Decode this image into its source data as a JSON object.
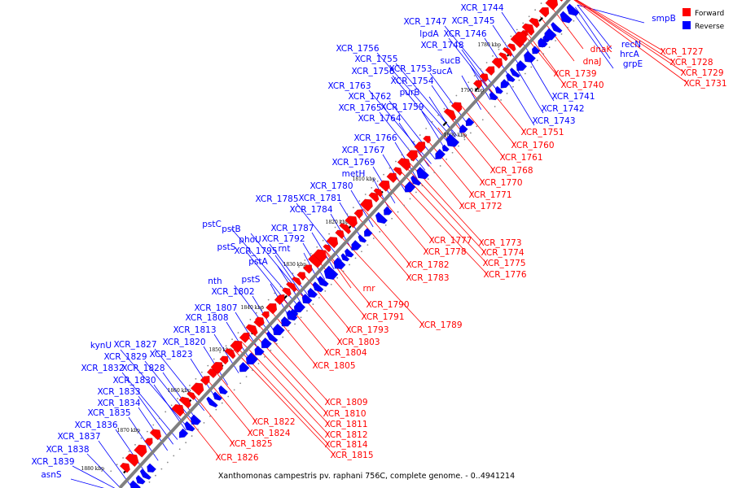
{
  "caption": "Xanthomonas campestris pv. raphani 756C, complete genome. - 0..4941214",
  "legend": {
    "forward_label": "Forward",
    "reverse_label": "Reverse",
    "forward_color": "#ff0000",
    "reverse_color": "#0000ff"
  },
  "colors": {
    "axis": "#808080",
    "tick": "#000000"
  },
  "ticks": [
    "1780 kbp",
    "1790 kbp",
    "1800 kbp",
    "1810 kbp",
    "1820 kbp",
    "1830 kbp",
    "1840 kbp",
    "1850 kbp",
    "1860 kbp",
    "1870 kbp",
    "1880 kbp"
  ],
  "reverse_genes": [
    "XCR_1744",
    "XCR_1745",
    "XCR_1747",
    "XCR_1746",
    "lpdA",
    "XCR_1748",
    "XCR_1756",
    "XCR_1755",
    "sucB",
    "XCR_1758",
    "XCR_1753",
    "sucA",
    "XCR_1754",
    "XCR_1763",
    "purB",
    "XCR_1762",
    "XCR_1765",
    "XCR_1759",
    "XCR_1764",
    "XCR_1766",
    "XCR_1767",
    "XCR_1769",
    "metH",
    "XCR_1780",
    "XCR_1785",
    "XCR_1781",
    "XCR_1784",
    "pstC",
    "pstB",
    "XCR_1787",
    "phoU",
    "XCR_1792",
    "pstS",
    "XCR_1795",
    "rnt",
    "pstA",
    "nth",
    "pstS",
    "XCR_1802",
    "XCR_1807",
    "XCR_1808",
    "XCR_1813",
    "XCR_1820",
    "kynU",
    "XCR_1827",
    "XCR_1823",
    "XCR_1829",
    "XCR_1832",
    "XCR_1828",
    "XCR_1830",
    "XCR_1833",
    "XCR_1834",
    "XCR_1835",
    "XCR_1836",
    "XCR_1837",
    "XCR_1838",
    "XCR_1839",
    "asnS",
    "recN",
    "hrcA",
    "grpE",
    "smpB",
    "XCR_1741",
    "XCR_1742",
    "XCR_1743"
  ],
  "forward_genes": [
    "dnaK",
    "dnaJ",
    "XCR_1739",
    "XCR_1740",
    "XCR_1727",
    "XCR_1728",
    "XCR_1729",
    "XCR_1731",
    "XCR_1751",
    "XCR_1760",
    "XCR_1761",
    "XCR_1768",
    "XCR_1770",
    "XCR_1771",
    "XCR_1772",
    "XCR_1777",
    "XCR_1773",
    "XCR_1778",
    "XCR_1774",
    "XCR_1775",
    "XCR_1776",
    "XCR_1782",
    "XCR_1783",
    "rnr",
    "XCR_1790",
    "XCR_1791",
    "XCR_1789",
    "XCR_1793",
    "XCR_1803",
    "XCR_1804",
    "XCR_1805",
    "XCR_1809",
    "XCR_1810",
    "XCR_1811",
    "XCR_1812",
    "XCR_1814",
    "XCR_1815",
    "XCR_1822",
    "XCR_1824",
    "XCR_1825",
    "XCR_1826"
  ]
}
